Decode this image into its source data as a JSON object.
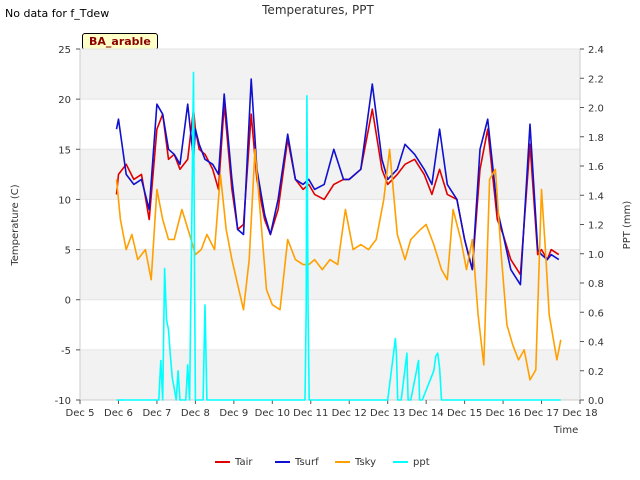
{
  "note": "No data for f_Tdew",
  "site_label": "BA_arable",
  "colors": {
    "Tair": "#e00000",
    "Tsurf": "#1010d0",
    "Tsky": "#ffa000",
    "ppt": "#00ffff"
  },
  "chart_data": {
    "type": "line",
    "title": "Temperatures, PPT",
    "xlabel": "Time",
    "ylabel": "Temperature (C)",
    "y2label": "PPT (mm)",
    "xlim": [
      5,
      18
    ],
    "ylim": [
      -10,
      25
    ],
    "y2lim": [
      0,
      2.4
    ],
    "x_ticks": [
      5,
      6,
      7,
      8,
      9,
      10,
      11,
      12,
      13,
      14,
      15,
      16,
      17,
      18
    ],
    "x_tick_labels": [
      "Dec 5",
      "Dec 6",
      "Dec 7",
      "Dec 8",
      "Dec 9",
      "Dec 10",
      "Dec 11",
      "Dec 12",
      "Dec 13",
      "Dec 14",
      "Dec 15",
      "Dec 16",
      "Dec 17",
      "Dec 18"
    ],
    "y_ticks": [
      -10,
      -5,
      0,
      5,
      10,
      15,
      20,
      25
    ],
    "y2_ticks": [
      0.0,
      0.2,
      0.4,
      0.6,
      0.8,
      1.0,
      1.2,
      1.4,
      1.6,
      1.8,
      2.0,
      2.2,
      2.4
    ],
    "y2_tick_labels": [
      "0.0",
      "0.2",
      "0.4",
      "0.6",
      "0.8",
      "1.0",
      "1.2",
      "1.4",
      "1.6",
      "1.8",
      "2.0",
      "2.2",
      "2.4"
    ],
    "legend_position": "bottom-center",
    "series": [
      {
        "name": "Tair",
        "axis": "left",
        "x": [
          5.95,
          6.0,
          6.2,
          6.4,
          6.6,
          6.8,
          7.0,
          7.15,
          7.3,
          7.45,
          7.6,
          7.8,
          7.95,
          8.0,
          8.1,
          8.25,
          8.45,
          8.6,
          8.75,
          8.95,
          9.1,
          9.25,
          9.45,
          9.6,
          9.8,
          9.95,
          10.15,
          10.4,
          10.6,
          10.8,
          10.95,
          11.1,
          11.35,
          11.6,
          11.85,
          12.0,
          12.3,
          12.6,
          12.85,
          13.0,
          13.25,
          13.45,
          13.7,
          13.95,
          14.15,
          14.35,
          14.55,
          14.8,
          15.0,
          15.2,
          15.4,
          15.6,
          15.85,
          16.0,
          16.2,
          16.45,
          16.7,
          16.9,
          17.0,
          17.15,
          17.25,
          17.45
        ],
        "y": [
          10.5,
          12.5,
          13.5,
          12.0,
          12.5,
          8.0,
          17.0,
          18.5,
          14.0,
          14.5,
          13.0,
          14.0,
          19.0,
          17.0,
          15.0,
          14.5,
          13.0,
          11.0,
          19.5,
          11.0,
          7.0,
          7.5,
          18.5,
          12.0,
          8.0,
          6.5,
          9.0,
          16.0,
          12.0,
          11.0,
          11.5,
          10.5,
          10.0,
          11.5,
          12.0,
          12.0,
          13.0,
          19.0,
          13.0,
          11.5,
          12.5,
          13.5,
          14.0,
          12.5,
          10.5,
          13.0,
          10.5,
          10.0,
          6.0,
          3.0,
          13.0,
          17.0,
          8.0,
          6.5,
          4.0,
          2.5,
          15.5,
          4.5,
          5.0,
          4.0,
          5.0,
          4.5
        ]
      },
      {
        "name": "Tsurf",
        "axis": "left",
        "x": [
          5.95,
          6.0,
          6.2,
          6.4,
          6.6,
          6.8,
          7.0,
          7.15,
          7.3,
          7.45,
          7.6,
          7.8,
          7.95,
          8.0,
          8.1,
          8.25,
          8.45,
          8.6,
          8.75,
          8.95,
          9.1,
          9.25,
          9.45,
          9.6,
          9.8,
          9.95,
          10.15,
          10.4,
          10.6,
          10.8,
          10.95,
          11.1,
          11.35,
          11.6,
          11.85,
          12.0,
          12.3,
          12.6,
          12.85,
          13.0,
          13.25,
          13.45,
          13.7,
          13.95,
          14.15,
          14.35,
          14.55,
          14.8,
          15.0,
          15.2,
          15.4,
          15.6,
          15.85,
          16.0,
          16.2,
          16.45,
          16.7,
          16.9,
          17.0,
          17.15,
          17.25,
          17.45
        ],
        "y": [
          17.0,
          18.0,
          12.5,
          11.5,
          12.0,
          9.0,
          19.5,
          18.5,
          15.0,
          14.5,
          13.5,
          19.5,
          14.0,
          17.0,
          15.5,
          14.0,
          13.5,
          12.5,
          20.5,
          12.0,
          7.0,
          6.5,
          22.0,
          13.0,
          8.5,
          6.5,
          10.0,
          16.5,
          12.0,
          11.5,
          12.0,
          11.0,
          11.5,
          15.0,
          12.0,
          12.0,
          13.0,
          21.5,
          14.0,
          12.0,
          13.0,
          15.5,
          14.5,
          13.0,
          11.5,
          17.0,
          11.5,
          10.0,
          6.0,
          3.0,
          15.0,
          18.0,
          9.0,
          6.5,
          3.0,
          1.5,
          17.5,
          5.0,
          4.5,
          4.0,
          4.5,
          4.0
        ]
      },
      {
        "name": "Tsky",
        "axis": "left",
        "x": [
          5.95,
          6.05,
          6.2,
          6.35,
          6.5,
          6.7,
          6.85,
          7.0,
          7.15,
          7.3,
          7.45,
          7.65,
          7.85,
          8.0,
          8.15,
          8.3,
          8.5,
          8.65,
          8.8,
          8.95,
          9.1,
          9.25,
          9.4,
          9.55,
          9.7,
          9.85,
          10.0,
          10.2,
          10.4,
          10.6,
          10.8,
          10.95,
          11.1,
          11.3,
          11.5,
          11.7,
          11.9,
          12.1,
          12.3,
          12.5,
          12.7,
          12.9,
          13.05,
          13.25,
          13.45,
          13.6,
          13.85,
          14.0,
          14.2,
          14.4,
          14.55,
          14.7,
          14.9,
          15.05,
          15.2,
          15.35,
          15.5,
          15.65,
          15.8,
          15.95,
          16.1,
          16.25,
          16.4,
          16.55,
          16.7,
          16.85,
          17.0,
          17.1,
          17.2,
          17.4,
          17.5
        ],
        "y": [
          12.0,
          8.0,
          5.0,
          6.5,
          4.0,
          5.0,
          2.0,
          11.0,
          8.0,
          6.0,
          6.0,
          9.0,
          6.5,
          4.5,
          5.0,
          6.5,
          5.0,
          12.5,
          7.0,
          4.0,
          1.5,
          -1.0,
          4.0,
          15.0,
          8.0,
          1.0,
          -0.5,
          -1.0,
          6.0,
          4.0,
          3.5,
          3.5,
          4.0,
          3.0,
          4.0,
          3.5,
          9.0,
          5.0,
          5.5,
          5.0,
          6.0,
          10.0,
          15.0,
          6.5,
          4.0,
          6.0,
          7.0,
          7.5,
          5.5,
          3.0,
          2.0,
          9.0,
          6.0,
          3.0,
          6.0,
          -1.5,
          -6.5,
          12.0,
          13.0,
          4.5,
          -2.5,
          -4.5,
          -6.0,
          -5.0,
          -8.0,
          -7.0,
          11.0,
          5.0,
          -1.5,
          -6.0,
          -4.0
        ]
      },
      {
        "name": "ppt",
        "axis": "right",
        "x": [
          5.95,
          6.9,
          6.95,
          7.0,
          7.05,
          7.1,
          7.15,
          7.2,
          7.25,
          7.3,
          7.35,
          7.4,
          7.45,
          7.5,
          7.55,
          7.6,
          7.65,
          7.7,
          7.75,
          7.8,
          7.85,
          7.9,
          7.95,
          7.98,
          8.0,
          8.02,
          8.05,
          8.1,
          8.15,
          8.2,
          8.25,
          8.3,
          8.35,
          8.4,
          8.45,
          8.5,
          9.0,
          10.0,
          10.85,
          10.88,
          10.9,
          10.93,
          10.96,
          11.0,
          11.5,
          12.0,
          13.0,
          13.2,
          13.23,
          13.26,
          13.3,
          13.35,
          13.5,
          13.53,
          13.56,
          13.6,
          13.8,
          13.83,
          13.86,
          13.9,
          14.2,
          14.25,
          14.3,
          14.35,
          14.4,
          14.45,
          15.0,
          16.0,
          16.5,
          17.0,
          17.5
        ],
        "y": [
          0,
          0,
          0,
          0,
          0,
          0.27,
          0,
          0.9,
          0.55,
          0.48,
          0.3,
          0.15,
          0.08,
          0,
          0.2,
          0,
          0,
          0,
          0,
          0.24,
          0,
          1.05,
          2.24,
          0.8,
          0,
          0,
          0,
          0,
          0,
          0,
          0.65,
          0,
          0,
          0,
          0,
          0,
          0,
          0,
          0,
          0.62,
          2.08,
          0.6,
          0,
          0,
          0,
          0,
          0,
          0.42,
          0.3,
          0,
          0,
          0,
          0.32,
          0,
          0,
          0,
          0.27,
          0,
          0,
          0,
          0.2,
          0.3,
          0.32,
          0.22,
          0,
          0,
          0,
          0,
          0,
          0,
          0
        ]
      }
    ]
  }
}
